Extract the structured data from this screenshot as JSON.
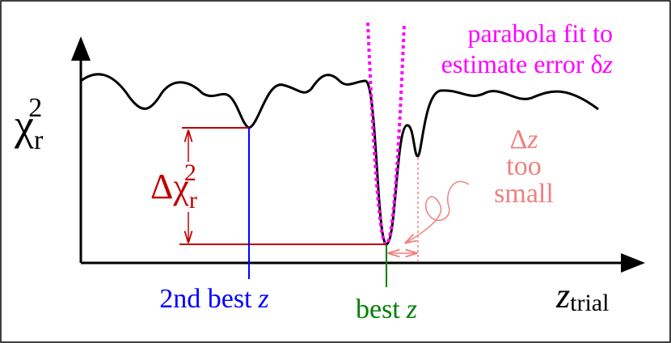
{
  "axes": {
    "y_label": {
      "symbol": "χ",
      "subscript": "r",
      "superscript": "2"
    },
    "x_label": {
      "symbol": "z",
      "subscript": "trial"
    }
  },
  "annotations": {
    "parabola": {
      "line1": "parabola fit to",
      "line2": "estimate error",
      "symbol": "δ",
      "variable": "z"
    },
    "delta_chi": {
      "symbol": "Δχ",
      "subscript": "r",
      "superscript": "2"
    },
    "delta_z": {
      "symbol": "Δ",
      "variable": "z",
      "line2": "too",
      "line3": "small"
    },
    "second_best": {
      "text": "2nd best",
      "variable": "z"
    },
    "best": {
      "text": "best",
      "variable": "z"
    }
  }
}
